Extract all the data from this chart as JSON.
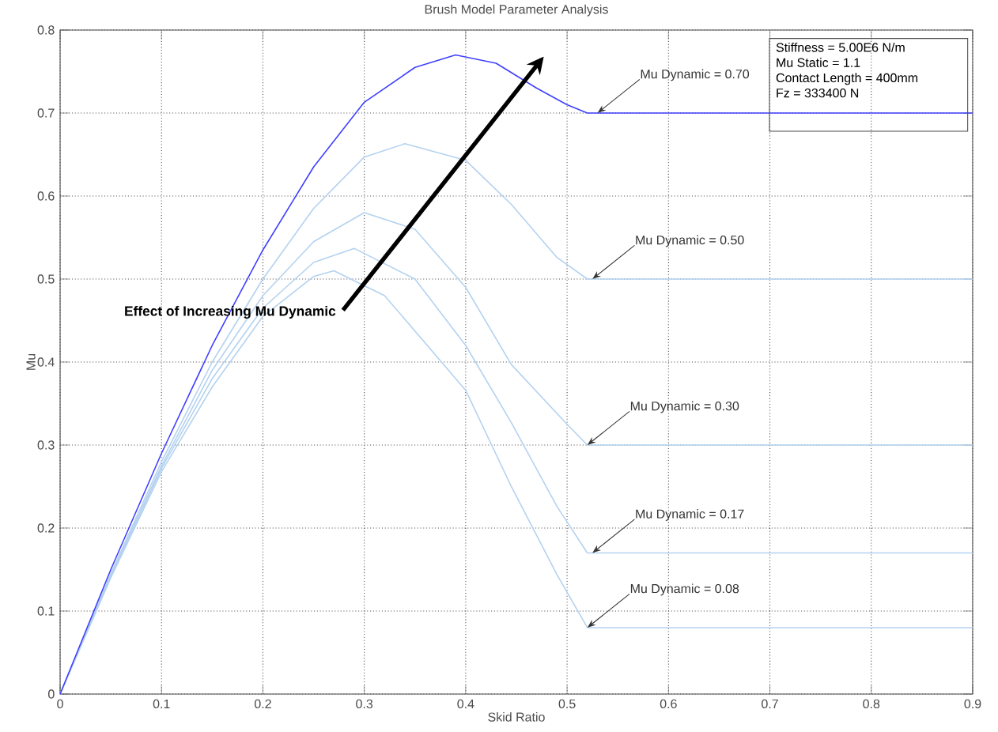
{
  "chart_data": {
    "type": "line",
    "title": "Brush Model Parameter Analysis",
    "xlabel": "Skid Ratio",
    "ylabel": "Mu",
    "xlim": [
      0,
      0.9
    ],
    "xticks": [
      0,
      0.1,
      0.2,
      0.3,
      0.4,
      0.5,
      0.6,
      0.7,
      0.8,
      0.9
    ],
    "ylim": [
      0,
      0.8
    ],
    "yticks": [
      0,
      0.1,
      0.2,
      0.3,
      0.4,
      0.5,
      0.6,
      0.7,
      0.8
    ],
    "grid": true,
    "line_style": "solid",
    "marker": "none",
    "series": [
      {
        "color": "#b4d2f0",
        "x": [
          0,
          0.05,
          0.1,
          0.15,
          0.2,
          0.25,
          0.27,
          0.32,
          0.4,
          0.445,
          0.49,
          0.52,
          0.9
        ],
        "values": [
          0,
          0.14,
          0.268,
          0.37,
          0.455,
          0.503,
          0.51,
          0.48,
          0.366,
          0.25,
          0.144,
          0.08,
          0.08
        ]
      },
      {
        "color": "#b4d2f0",
        "x": [
          0,
          0.05,
          0.1,
          0.15,
          0.2,
          0.25,
          0.29,
          0.35,
          0.4,
          0.445,
          0.49,
          0.52,
          0.9
        ],
        "values": [
          0,
          0.142,
          0.272,
          0.38,
          0.465,
          0.52,
          0.537,
          0.5,
          0.42,
          0.327,
          0.226,
          0.17,
          0.17
        ]
      },
      {
        "color": "#b4d2f0",
        "x": [
          0,
          0.05,
          0.1,
          0.15,
          0.2,
          0.25,
          0.3,
          0.35,
          0.4,
          0.445,
          0.5,
          0.52,
          0.9
        ],
        "values": [
          0,
          0.143,
          0.275,
          0.39,
          0.48,
          0.545,
          0.58,
          0.56,
          0.49,
          0.397,
          0.325,
          0.3,
          0.3
        ]
      },
      {
        "color": "#b4d2f0",
        "x": [
          0,
          0.05,
          0.1,
          0.15,
          0.2,
          0.25,
          0.3,
          0.34,
          0.4,
          0.445,
          0.49,
          0.52,
          0.9
        ],
        "values": [
          0,
          0.145,
          0.28,
          0.4,
          0.5,
          0.585,
          0.647,
          0.663,
          0.643,
          0.59,
          0.526,
          0.5,
          0.5
        ]
      },
      {
        "color": "#4040ff",
        "x": [
          0,
          0.05,
          0.1,
          0.15,
          0.2,
          0.25,
          0.3,
          0.35,
          0.39,
          0.43,
          0.47,
          0.5,
          0.52,
          0.9
        ],
        "values": [
          0,
          0.15,
          0.29,
          0.42,
          0.535,
          0.635,
          0.713,
          0.755,
          0.77,
          0.76,
          0.73,
          0.71,
          0.7,
          0.7
        ]
      }
    ],
    "annotations": [
      {
        "text": "Mu Dynamic = 0.70",
        "x": 0.53,
        "y": 0.7
      },
      {
        "text": "Mu Dynamic = 0.50",
        "x": 0.525,
        "y": 0.5
      },
      {
        "text": "Mu Dynamic = 0.30",
        "x": 0.52,
        "y": 0.3
      },
      {
        "text": "Mu Dynamic = 0.17",
        "x": 0.525,
        "y": 0.17
      },
      {
        "text": "Mu Dynamic = 0.08",
        "x": 0.52,
        "y": 0.08
      },
      "**Effect of Increasing Mu Dynamic**",
      "Stiffness = 5.00E6 N/m",
      "Mu Static = 1.1",
      "Contact Length = 400mm",
      "Fz = 333400 N"
    ]
  }
}
